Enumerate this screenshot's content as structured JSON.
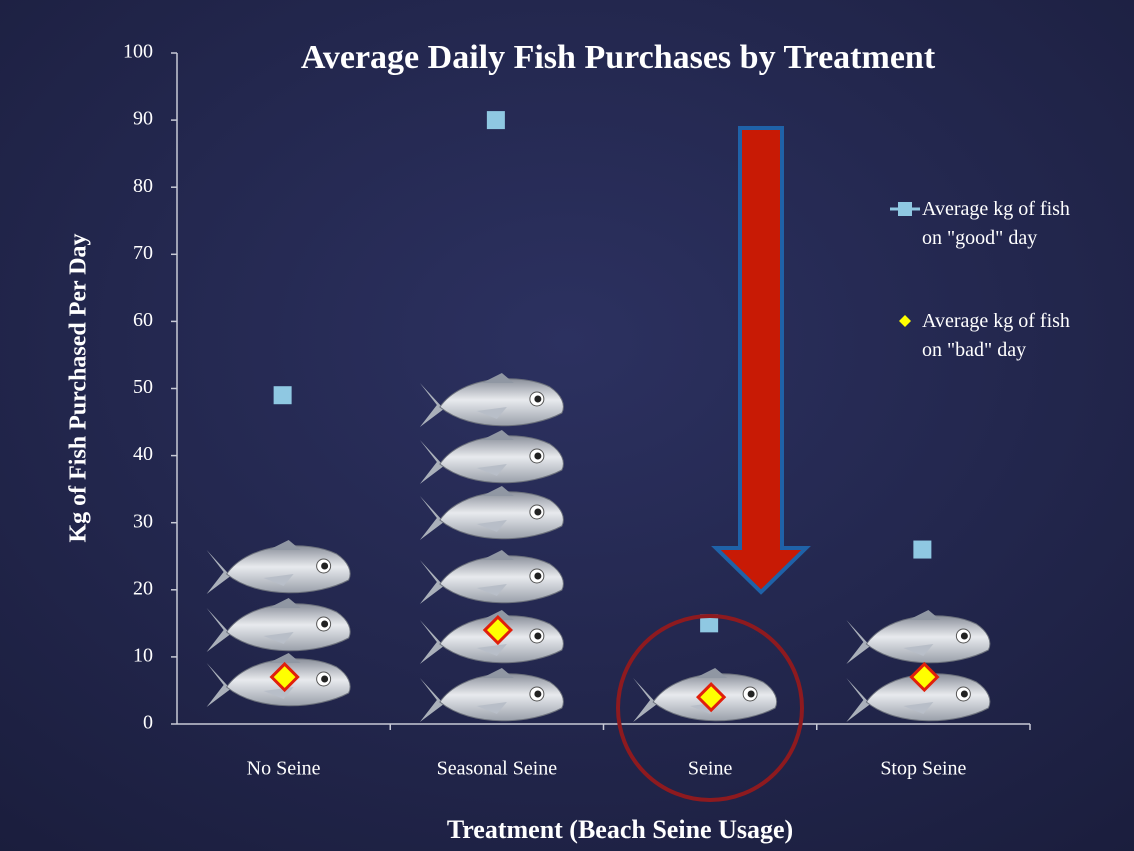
{
  "chart_data": {
    "type": "scatter",
    "title": "Average Daily Fish Purchases by Treatment",
    "x_label": "Treatment (Beach Seine Usage)",
    "y_label": "Kg of Fish Purchased Per Day",
    "categories": [
      "No Seine",
      "Seasonal Seine",
      "Seine",
      "Stop Seine"
    ],
    "series": [
      {
        "name": "Average kg of fish on \"good\" day",
        "color": "#8fc8e2",
        "marker": "square",
        "values": [
          49,
          90,
          15,
          26
        ]
      },
      {
        "name": "Average kg of fish on \"bad\" day",
        "color": "#ffff00",
        "marker": "diamond",
        "values": [
          7,
          14,
          4,
          7
        ]
      }
    ],
    "ylim": [
      0,
      100
    ],
    "yticks": [
      0,
      10,
      20,
      30,
      40,
      50,
      60,
      70,
      80,
      90,
      100
    ],
    "legend": "right"
  }
}
